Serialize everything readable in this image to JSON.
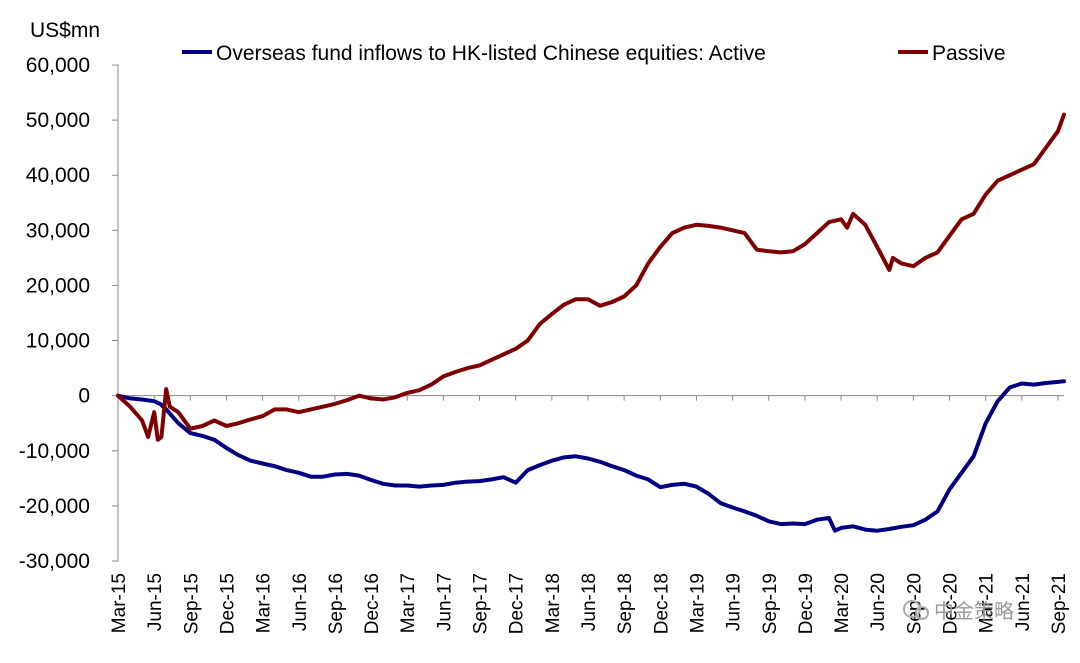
{
  "chart_data": {
    "type": "line",
    "unit_label": "US$mn",
    "ylim": [
      -30000,
      60000
    ],
    "y_ticks": [
      60000,
      50000,
      40000,
      30000,
      20000,
      10000,
      0,
      -10000,
      -20000,
      -30000
    ],
    "y_tick_labels": [
      "60,000",
      "50,000",
      "40,000",
      "30,000",
      "20,000",
      "10,000",
      "0",
      "-10,000",
      "-20,000",
      "-30,000"
    ],
    "x_range": [
      0,
      78.5
    ],
    "x_ticks": [
      0,
      3,
      6,
      9,
      12,
      15,
      18,
      21,
      24,
      27,
      30,
      33,
      36,
      39,
      42,
      45,
      48,
      51,
      54,
      57,
      60,
      63,
      66,
      69,
      72,
      75,
      78
    ],
    "x_tick_labels": [
      "Mar-15",
      "Jun-15",
      "Sep-15",
      "Dec-15",
      "Mar-16",
      "Jun-16",
      "Sep-16",
      "Dec-16",
      "Mar-17",
      "Jun-17",
      "Sep-17",
      "Dec-17",
      "Mar-18",
      "Jun-18",
      "Sep-18",
      "Dec-18",
      "Mar-19",
      "Jun-19",
      "Sep-19",
      "Dec-19",
      "Mar-20",
      "Jun-20",
      "Sep-20",
      "Dec-20",
      "Mar-21",
      "Jun-21",
      "Sep-21"
    ],
    "series": [
      {
        "name": "Overseas fund inflows to HK-listed Chinese equities: Active",
        "color": "#000080",
        "points": [
          [
            0,
            0
          ],
          [
            1,
            -500
          ],
          [
            2,
            -700
          ],
          [
            3,
            -1000
          ],
          [
            3.5,
            -1500
          ],
          [
            4,
            -2500
          ],
          [
            5,
            -5000
          ],
          [
            6,
            -6800
          ],
          [
            7,
            -7300
          ],
          [
            8,
            -8000
          ],
          [
            9,
            -9500
          ],
          [
            10,
            -10800
          ],
          [
            11,
            -11800
          ],
          [
            12,
            -12300
          ],
          [
            13,
            -12800
          ],
          [
            14,
            -13500
          ],
          [
            15,
            -14000
          ],
          [
            16,
            -14700
          ],
          [
            17,
            -14700
          ],
          [
            18,
            -14300
          ],
          [
            19,
            -14200
          ],
          [
            20,
            -14500
          ],
          [
            21,
            -15300
          ],
          [
            22,
            -16000
          ],
          [
            23,
            -16300
          ],
          [
            24,
            -16300
          ],
          [
            25,
            -16500
          ],
          [
            26,
            -16300
          ],
          [
            27,
            -16200
          ],
          [
            28,
            -15800
          ],
          [
            29,
            -15600
          ],
          [
            30,
            -15500
          ],
          [
            31,
            -15200
          ],
          [
            32,
            -14800
          ],
          [
            33,
            -15800
          ],
          [
            34,
            -13500
          ],
          [
            35,
            -12600
          ],
          [
            36,
            -11800
          ],
          [
            37,
            -11200
          ],
          [
            38,
            -11000
          ],
          [
            39,
            -11400
          ],
          [
            40,
            -12000
          ],
          [
            41,
            -12800
          ],
          [
            42,
            -13500
          ],
          [
            43,
            -14500
          ],
          [
            44,
            -15200
          ],
          [
            45,
            -16600
          ],
          [
            46,
            -16200
          ],
          [
            47,
            -16000
          ],
          [
            48,
            -16500
          ],
          [
            49,
            -17800
          ],
          [
            50,
            -19500
          ],
          [
            51,
            -20300
          ],
          [
            52,
            -21000
          ],
          [
            53,
            -21800
          ],
          [
            54,
            -22800
          ],
          [
            55,
            -23300
          ],
          [
            56,
            -23200
          ],
          [
            57,
            -23300
          ],
          [
            58,
            -22500
          ],
          [
            59,
            -22200
          ],
          [
            59.5,
            -24500
          ],
          [
            60,
            -24000
          ],
          [
            61,
            -23700
          ],
          [
            62,
            -24300
          ],
          [
            63,
            -24500
          ],
          [
            64,
            -24200
          ],
          [
            65,
            -23800
          ],
          [
            66,
            -23500
          ],
          [
            67,
            -22500
          ],
          [
            68,
            -21000
          ],
          [
            69,
            -17000
          ],
          [
            70,
            -14000
          ],
          [
            71,
            -11000
          ],
          [
            72,
            -5000
          ],
          [
            73,
            -1000
          ],
          [
            74,
            1500
          ],
          [
            75,
            2200
          ],
          [
            76,
            2000
          ],
          [
            77,
            2300
          ],
          [
            78,
            2500
          ],
          [
            78.5,
            2600
          ]
        ]
      },
      {
        "name": "Passive",
        "color": "#7f0000",
        "points": [
          [
            0,
            0
          ],
          [
            1,
            -2000
          ],
          [
            2,
            -4500
          ],
          [
            2.5,
            -7500
          ],
          [
            3,
            -3000
          ],
          [
            3.3,
            -8000
          ],
          [
            3.6,
            -7500
          ],
          [
            4,
            1200
          ],
          [
            4.3,
            -2000
          ],
          [
            5,
            -3000
          ],
          [
            6,
            -6000
          ],
          [
            7,
            -5500
          ],
          [
            8,
            -4500
          ],
          [
            9,
            -5500
          ],
          [
            10,
            -5000
          ],
          [
            11,
            -4300
          ],
          [
            12,
            -3700
          ],
          [
            13,
            -2500
          ],
          [
            14,
            -2500
          ],
          [
            15,
            -3000
          ],
          [
            16,
            -2500
          ],
          [
            17,
            -2000
          ],
          [
            18,
            -1500
          ],
          [
            19,
            -800
          ],
          [
            20,
            0
          ],
          [
            21,
            -500
          ],
          [
            22,
            -700
          ],
          [
            23,
            -300
          ],
          [
            24,
            500
          ],
          [
            25,
            1000
          ],
          [
            26,
            2000
          ],
          [
            27,
            3500
          ],
          [
            28,
            4300
          ],
          [
            29,
            5000
          ],
          [
            30,
            5500
          ],
          [
            31,
            6500
          ],
          [
            32,
            7500
          ],
          [
            33,
            8500
          ],
          [
            34,
            10000
          ],
          [
            35,
            13000
          ],
          [
            36,
            14800
          ],
          [
            37,
            16500
          ],
          [
            38,
            17500
          ],
          [
            39,
            17500
          ],
          [
            40,
            16300
          ],
          [
            41,
            17000
          ],
          [
            42,
            18000
          ],
          [
            43,
            20000
          ],
          [
            44,
            24000
          ],
          [
            45,
            27000
          ],
          [
            46,
            29500
          ],
          [
            47,
            30500
          ],
          [
            48,
            31000
          ],
          [
            49,
            30800
          ],
          [
            50,
            30500
          ],
          [
            51,
            30000
          ],
          [
            52,
            29500
          ],
          [
            53,
            26500
          ],
          [
            54,
            26200
          ],
          [
            55,
            26000
          ],
          [
            56,
            26200
          ],
          [
            57,
            27500
          ],
          [
            58,
            29500
          ],
          [
            59,
            31500
          ],
          [
            60,
            32000
          ],
          [
            60.5,
            30500
          ],
          [
            61,
            33000
          ],
          [
            62,
            31000
          ],
          [
            63,
            27000
          ],
          [
            64,
            22800
          ],
          [
            64.3,
            25000
          ],
          [
            65,
            24000
          ],
          [
            66,
            23500
          ],
          [
            67,
            25000
          ],
          [
            68,
            26000
          ],
          [
            69,
            29000
          ],
          [
            70,
            32000
          ],
          [
            71,
            33000
          ],
          [
            72,
            36500
          ],
          [
            73,
            39000
          ],
          [
            74,
            40000
          ],
          [
            75,
            41000
          ],
          [
            76,
            42000
          ],
          [
            77,
            45000
          ],
          [
            78,
            48000
          ],
          [
            78.5,
            51000
          ]
        ]
      }
    ]
  },
  "watermark": "中金策略"
}
